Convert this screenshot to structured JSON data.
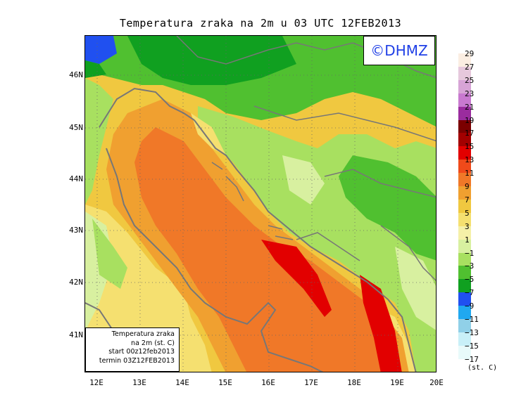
{
  "title": "Temperatura zraka na 2m u 03 UTC 12FEB2013",
  "logo_text": "©DHMZ",
  "info_box": {
    "line1": "Temperatura zraka",
    "line2": "na 2m (st. C)",
    "line3": "start 00z12feb2013",
    "line4": "termin 03Z12FEB2013"
  },
  "lat_labels": [
    "46N",
    "45N",
    "44N",
    "43N",
    "42N",
    "41N"
  ],
  "lon_labels": [
    "12E",
    "13E",
    "14E",
    "15E",
    "16E",
    "17E",
    "18E",
    "19E",
    "20E"
  ],
  "legend": {
    "labels": [
      "29",
      "27",
      "25",
      "23",
      "21",
      "19",
      "17",
      "15",
      "13",
      "11",
      "9",
      "7",
      "5",
      "3",
      "1",
      "−1",
      "−3",
      "−5",
      "−7",
      "−9",
      "−11",
      "−13",
      "−15",
      "−17"
    ],
    "colors": [
      "#fbeee2",
      "#e6c8dc",
      "#d7a4d6",
      "#c879cf",
      "#9a2c9e",
      "#7b0000",
      "#a30000",
      "#e20000",
      "#f04a1a",
      "#f07828",
      "#f0a030",
      "#f0c840",
      "#f5e070",
      "#f5f0a8",
      "#d8f0a0",
      "#a8e060",
      "#50c030",
      "#10a020",
      "#2050f0",
      "#20a8f0",
      "#90d0e8",
      "#c8f0f8",
      "#e8fafa"
    ],
    "unit": "(st. C)"
  },
  "colors": {
    "sea_warm": "#f07828",
    "sea_hot": "#e20000",
    "land_mid": "#a8e060",
    "land_cold": "#10a020",
    "coast": "#777777"
  }
}
